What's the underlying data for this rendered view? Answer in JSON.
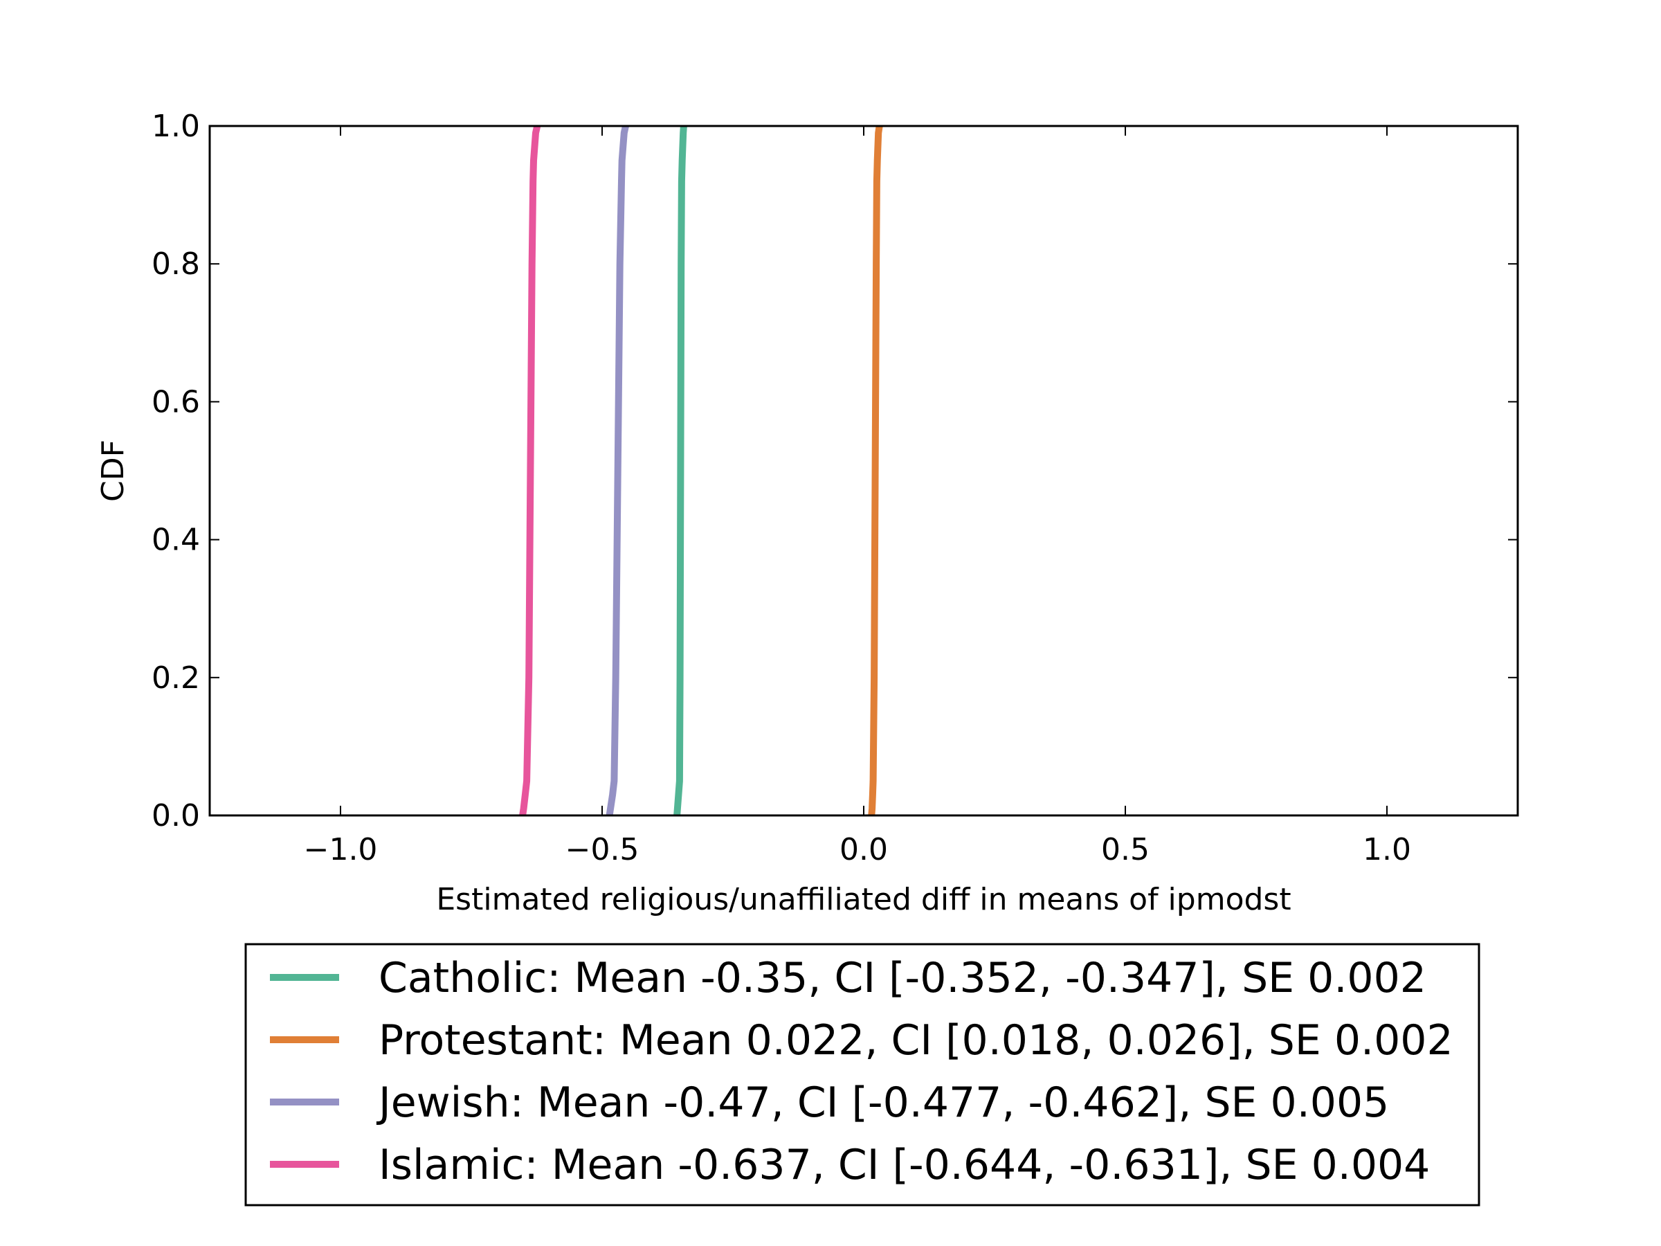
{
  "chart_data": {
    "type": "line",
    "title": "",
    "xlabel": "Estimated religious/unaffiliated diff in means of ipmodst",
    "ylabel": "CDF",
    "xlim": [
      -1.25,
      1.25
    ],
    "ylim": [
      0.0,
      1.0
    ],
    "xticks": [
      -1.0,
      -0.5,
      0.0,
      0.5,
      1.0
    ],
    "xtick_labels": [
      "−1.0",
      "−0.5",
      "0.0",
      "0.5",
      "1.0"
    ],
    "yticks": [
      0.0,
      0.2,
      0.4,
      0.6,
      0.8,
      1.0
    ],
    "ytick_labels": [
      "0.0",
      "0.2",
      "0.4",
      "0.6",
      "0.8",
      "1.0"
    ],
    "grid": false,
    "legend_position": "bottom-outside",
    "series": [
      {
        "name": "Catholic: Mean -0.35, CI [-0.352, -0.347], SE 0.002",
        "color": "#52b594",
        "x": [
          -0.357,
          -0.356,
          -0.354,
          -0.352,
          -0.351,
          -0.35,
          -0.349,
          -0.348,
          -0.347,
          -0.345,
          -0.344
        ],
        "y": [
          0.0,
          0.01,
          0.03,
          0.05,
          0.2,
          0.5,
          0.8,
          0.92,
          0.95,
          0.99,
          1.0
        ]
      },
      {
        "name": "Protestant: Mean 0.022, CI [0.018, 0.026], SE 0.002",
        "color": "#e07f36",
        "x": [
          0.015,
          0.016,
          0.017,
          0.018,
          0.02,
          0.022,
          0.024,
          0.025,
          0.026,
          0.028,
          0.03
        ],
        "y": [
          0.0,
          0.01,
          0.03,
          0.05,
          0.2,
          0.5,
          0.8,
          0.92,
          0.95,
          0.99,
          1.0
        ]
      },
      {
        "name": "Jewish: Mean -0.47, CI [-0.477, -0.462], SE 0.005",
        "color": "#9491c4",
        "x": [
          -0.486,
          -0.484,
          -0.48,
          -0.477,
          -0.474,
          -0.47,
          -0.466,
          -0.463,
          -0.462,
          -0.458,
          -0.455
        ],
        "y": [
          0.0,
          0.01,
          0.03,
          0.05,
          0.2,
          0.5,
          0.8,
          0.92,
          0.95,
          0.99,
          1.0
        ]
      },
      {
        "name": "Islamic: Mean -0.637, CI [-0.644, -0.631], SE 0.004",
        "color": "#e7559c",
        "x": [
          -0.652,
          -0.65,
          -0.647,
          -0.644,
          -0.64,
          -0.637,
          -0.634,
          -0.632,
          -0.631,
          -0.627,
          -0.624
        ],
        "y": [
          0.0,
          0.01,
          0.03,
          0.05,
          0.2,
          0.5,
          0.8,
          0.92,
          0.95,
          0.99,
          1.0
        ]
      }
    ]
  }
}
